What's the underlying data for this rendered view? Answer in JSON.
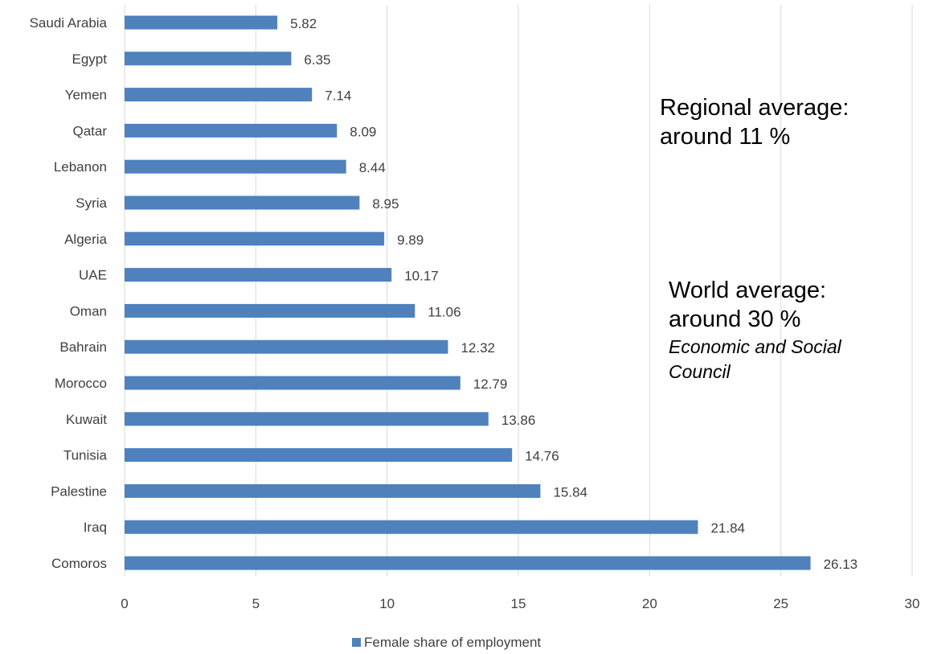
{
  "chart_data": {
    "type": "bar",
    "orientation": "horizontal",
    "categories": [
      "Saudi Arabia",
      "Egypt",
      "Yemen",
      "Qatar",
      "Lebanon",
      "Syria",
      "Algeria",
      "UAE",
      "Oman",
      "Bahrain",
      "Morocco",
      "Kuwait",
      "Tunisia",
      "Palestine",
      "Iraq",
      "Comoros"
    ],
    "series": [
      {
        "name": "Female share of employment",
        "values": [
          5.82,
          6.35,
          7.14,
          8.09,
          8.44,
          8.95,
          9.89,
          10.17,
          11.06,
          12.32,
          12.79,
          13.86,
          14.76,
          15.84,
          21.84,
          26.13
        ],
        "data_labels": [
          "5.82",
          "6.35",
          "7.14",
          "8.09",
          "8.44",
          "8.95",
          "9.89",
          "10.17",
          "11.06",
          "12.32",
          "12.79",
          "13.86",
          "14.76",
          "15.84",
          "21.84",
          "26.13"
        ],
        "color": "#4f81bd"
      }
    ],
    "xlim": [
      0,
      30
    ],
    "xticks": [
      "0",
      "5",
      "10",
      "15",
      "20",
      "25",
      "30"
    ],
    "xtick_values": [
      0,
      5,
      10,
      15,
      20,
      25,
      30
    ],
    "grid": "vertical",
    "legend": "bottom",
    "title": "",
    "xlabel": "",
    "ylabel": ""
  },
  "annotations": {
    "regional_line1": "Regional average:",
    "regional_line2": "around 11 %",
    "world_line1": "World average:",
    "world_line2": "around 30 %",
    "source_line1": "Economic and Social",
    "source_line2": "Council"
  },
  "colors": {
    "bar": "#4f81bd",
    "grid": "#d9d9d9",
    "text": "#404040"
  }
}
